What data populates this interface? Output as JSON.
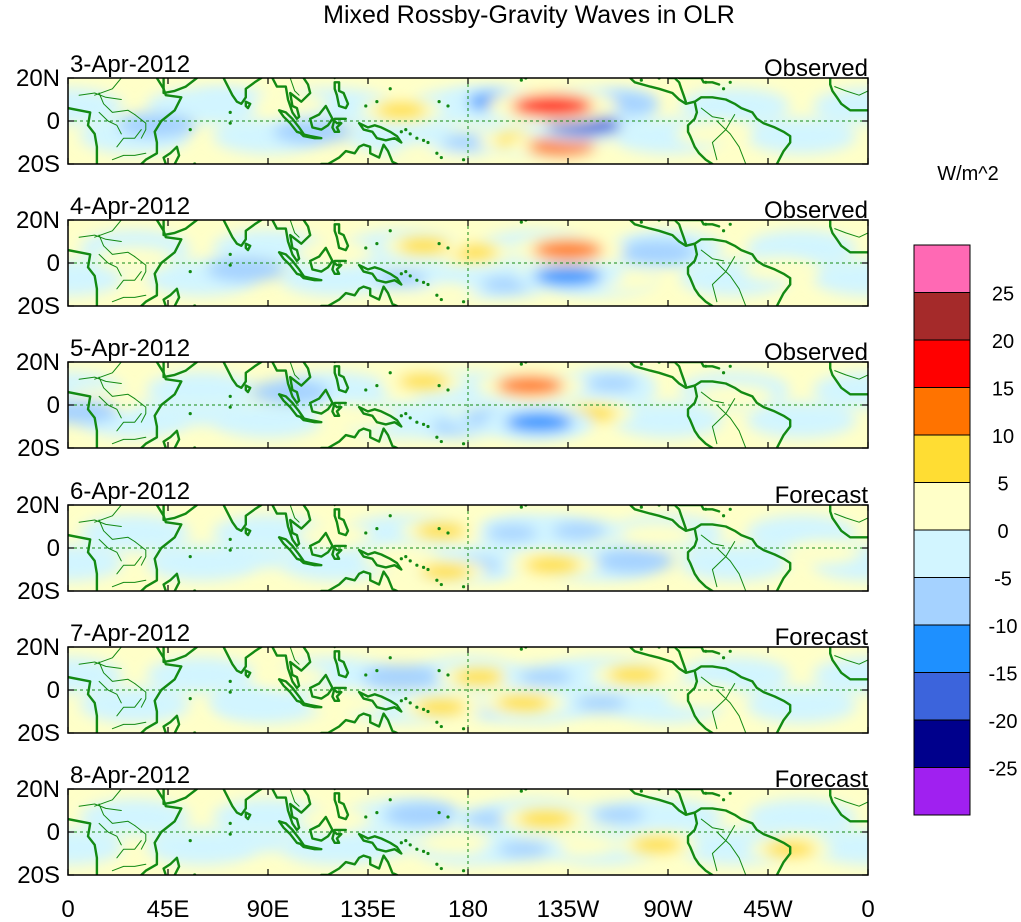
{
  "chart_data": {
    "type": "heatmap",
    "title": "Mixed Rossby-Gravity Waves in OLR",
    "colorbar": {
      "units": "W/m^2",
      "tick_labels": [
        "25",
        "20",
        "15",
        "10",
        "5",
        "0",
        "-5",
        "-10",
        "-15",
        "-20",
        "-25"
      ],
      "levels": [
        {
          "range": "> 25",
          "color": "#ff69b4"
        },
        {
          "range": "20 to 25",
          "color": "#a52a2a"
        },
        {
          "range": "15 to 20",
          "color": "#ff0000"
        },
        {
          "range": "10 to 15",
          "color": "#ff7300"
        },
        {
          "range": "5 to 10",
          "color": "#ffdd33"
        },
        {
          "range": "0 to 5",
          "color": "#ffffc8"
        },
        {
          "range": "-5 to 0",
          "color": "#d2f5ff"
        },
        {
          "range": "-10 to -5",
          "color": "#a5d2ff"
        },
        {
          "range": "-15 to -10",
          "color": "#1e90ff"
        },
        {
          "range": "-20 to -15",
          "color": "#3c64dc"
        },
        {
          "range": "-25 to -20",
          "color": "#00008c"
        },
        {
          "range": "< -25",
          "color": "#a020f0"
        }
      ]
    },
    "x_axis": {
      "ticks": [
        "0",
        "45E",
        "90E",
        "135E",
        "180",
        "135W",
        "90W",
        "45W",
        "0"
      ],
      "range_deg": [
        0,
        360
      ]
    },
    "y_axis": {
      "ticks": [
        "20N",
        "0",
        "20S"
      ],
      "range_deg": [
        -20,
        20
      ]
    },
    "panels": [
      {
        "date": "3-Apr-2012",
        "label": "Observed",
        "anomalies": [
          {
            "lon": 218,
            "lat": 7,
            "value": 17
          },
          {
            "lon": 222,
            "lat": -12,
            "value": 12
          },
          {
            "lon": 205,
            "lat": -9,
            "value": 8
          },
          {
            "lon": 232,
            "lat": -2,
            "value": -15
          },
          {
            "lon": 195,
            "lat": 9,
            "value": -12
          },
          {
            "lon": 180,
            "lat": -10,
            "value": -6
          },
          {
            "lon": 150,
            "lat": 5,
            "value": 6
          },
          {
            "lon": 165,
            "lat": -16,
            "value": 5
          },
          {
            "lon": 110,
            "lat": -5,
            "value": -5
          },
          {
            "lon": 75,
            "lat": 10,
            "value": -4
          },
          {
            "lon": 248,
            "lat": 8,
            "value": -5
          },
          {
            "lon": 290,
            "lat": -6,
            "value": 4
          },
          {
            "lon": 40,
            "lat": -2,
            "value": -5
          },
          {
            "lon": 100,
            "lat": 8,
            "value": 4
          }
        ]
      },
      {
        "date": "4-Apr-2012",
        "label": "Observed",
        "anomalies": [
          {
            "lon": 225,
            "lat": 6,
            "value": 13
          },
          {
            "lon": 225,
            "lat": -6,
            "value": -12
          },
          {
            "lon": 198,
            "lat": -10,
            "value": -7
          },
          {
            "lon": 182,
            "lat": 5,
            "value": 6
          },
          {
            "lon": 160,
            "lat": 8,
            "value": 6
          },
          {
            "lon": 150,
            "lat": -7,
            "value": -6
          },
          {
            "lon": 120,
            "lat": 5,
            "value": 5
          },
          {
            "lon": 80,
            "lat": -3,
            "value": -5
          },
          {
            "lon": 250,
            "lat": -8,
            "value": 5
          },
          {
            "lon": 265,
            "lat": 5,
            "value": -5
          },
          {
            "lon": 320,
            "lat": -3,
            "value": 4
          },
          {
            "lon": 30,
            "lat": 2,
            "value": 5
          },
          {
            "lon": 170,
            "lat": -15,
            "value": 4
          }
        ]
      },
      {
        "date": "5-Apr-2012",
        "label": "Observed",
        "anomalies": [
          {
            "lon": 208,
            "lat": 9,
            "value": 12
          },
          {
            "lon": 212,
            "lat": -8,
            "value": -12
          },
          {
            "lon": 190,
            "lat": -6,
            "value": -7
          },
          {
            "lon": 235,
            "lat": -4,
            "value": 7
          },
          {
            "lon": 160,
            "lat": 11,
            "value": 6
          },
          {
            "lon": 175,
            "lat": -10,
            "value": -6
          },
          {
            "lon": 130,
            "lat": -6,
            "value": 5
          },
          {
            "lon": 100,
            "lat": 6,
            "value": -5
          },
          {
            "lon": 60,
            "lat": -4,
            "value": -4
          },
          {
            "lon": 245,
            "lat": 10,
            "value": -6
          },
          {
            "lon": 300,
            "lat": 4,
            "value": 5
          },
          {
            "lon": 15,
            "lat": 2,
            "value": 5
          },
          {
            "lon": 5,
            "lat": -3,
            "value": -5
          }
        ]
      },
      {
        "date": "6-Apr-2012",
        "label": "Forecast",
        "anomalies": [
          {
            "lon": 218,
            "lat": -8,
            "value": 8
          },
          {
            "lon": 200,
            "lat": 7,
            "value": -6
          },
          {
            "lon": 230,
            "lat": 8,
            "value": -7
          },
          {
            "lon": 183,
            "lat": -8,
            "value": -6
          },
          {
            "lon": 168,
            "lat": 8,
            "value": 6
          },
          {
            "lon": 150,
            "lat": -5,
            "value": 5
          },
          {
            "lon": 120,
            "lat": 6,
            "value": 4
          },
          {
            "lon": 255,
            "lat": -6,
            "value": -5
          },
          {
            "lon": 265,
            "lat": 6,
            "value": 5
          },
          {
            "lon": 85,
            "lat": -4,
            "value": -4
          },
          {
            "lon": 170,
            "lat": -11,
            "value": 6
          },
          {
            "lon": 340,
            "lat": -2,
            "value": 4
          }
        ]
      },
      {
        "date": "7-Apr-2012",
        "label": "Forecast",
        "anomalies": [
          {
            "lon": 205,
            "lat": -6,
            "value": 7
          },
          {
            "lon": 215,
            "lat": 6,
            "value": -7
          },
          {
            "lon": 185,
            "lat": 6,
            "value": 6
          },
          {
            "lon": 192,
            "lat": -8,
            "value": -6
          },
          {
            "lon": 168,
            "lat": -8,
            "value": 6
          },
          {
            "lon": 255,
            "lat": 7,
            "value": 7
          },
          {
            "lon": 240,
            "lat": -6,
            "value": -6
          },
          {
            "lon": 150,
            "lat": 6,
            "value": -5
          },
          {
            "lon": 125,
            "lat": -6,
            "value": 5
          },
          {
            "lon": 100,
            "lat": 6,
            "value": 4
          },
          {
            "lon": 80,
            "lat": -5,
            "value": -4
          },
          {
            "lon": 285,
            "lat": -3,
            "value": 4
          }
        ]
      },
      {
        "date": "8-Apr-2012",
        "label": "Forecast",
        "anomalies": [
          {
            "lon": 215,
            "lat": 6,
            "value": 8
          },
          {
            "lon": 205,
            "lat": -8,
            "value": -6
          },
          {
            "lon": 190,
            "lat": 6,
            "value": -6
          },
          {
            "lon": 230,
            "lat": -6,
            "value": 5
          },
          {
            "lon": 175,
            "lat": -5,
            "value": 5
          },
          {
            "lon": 160,
            "lat": 8,
            "value": -5
          },
          {
            "lon": 140,
            "lat": -6,
            "value": -4
          },
          {
            "lon": 248,
            "lat": 8,
            "value": -6
          },
          {
            "lon": 265,
            "lat": -6,
            "value": 6
          },
          {
            "lon": 120,
            "lat": 6,
            "value": 4
          },
          {
            "lon": 85,
            "lat": -4,
            "value": -4
          },
          {
            "lon": 325,
            "lat": -8,
            "value": 6
          }
        ]
      }
    ]
  }
}
